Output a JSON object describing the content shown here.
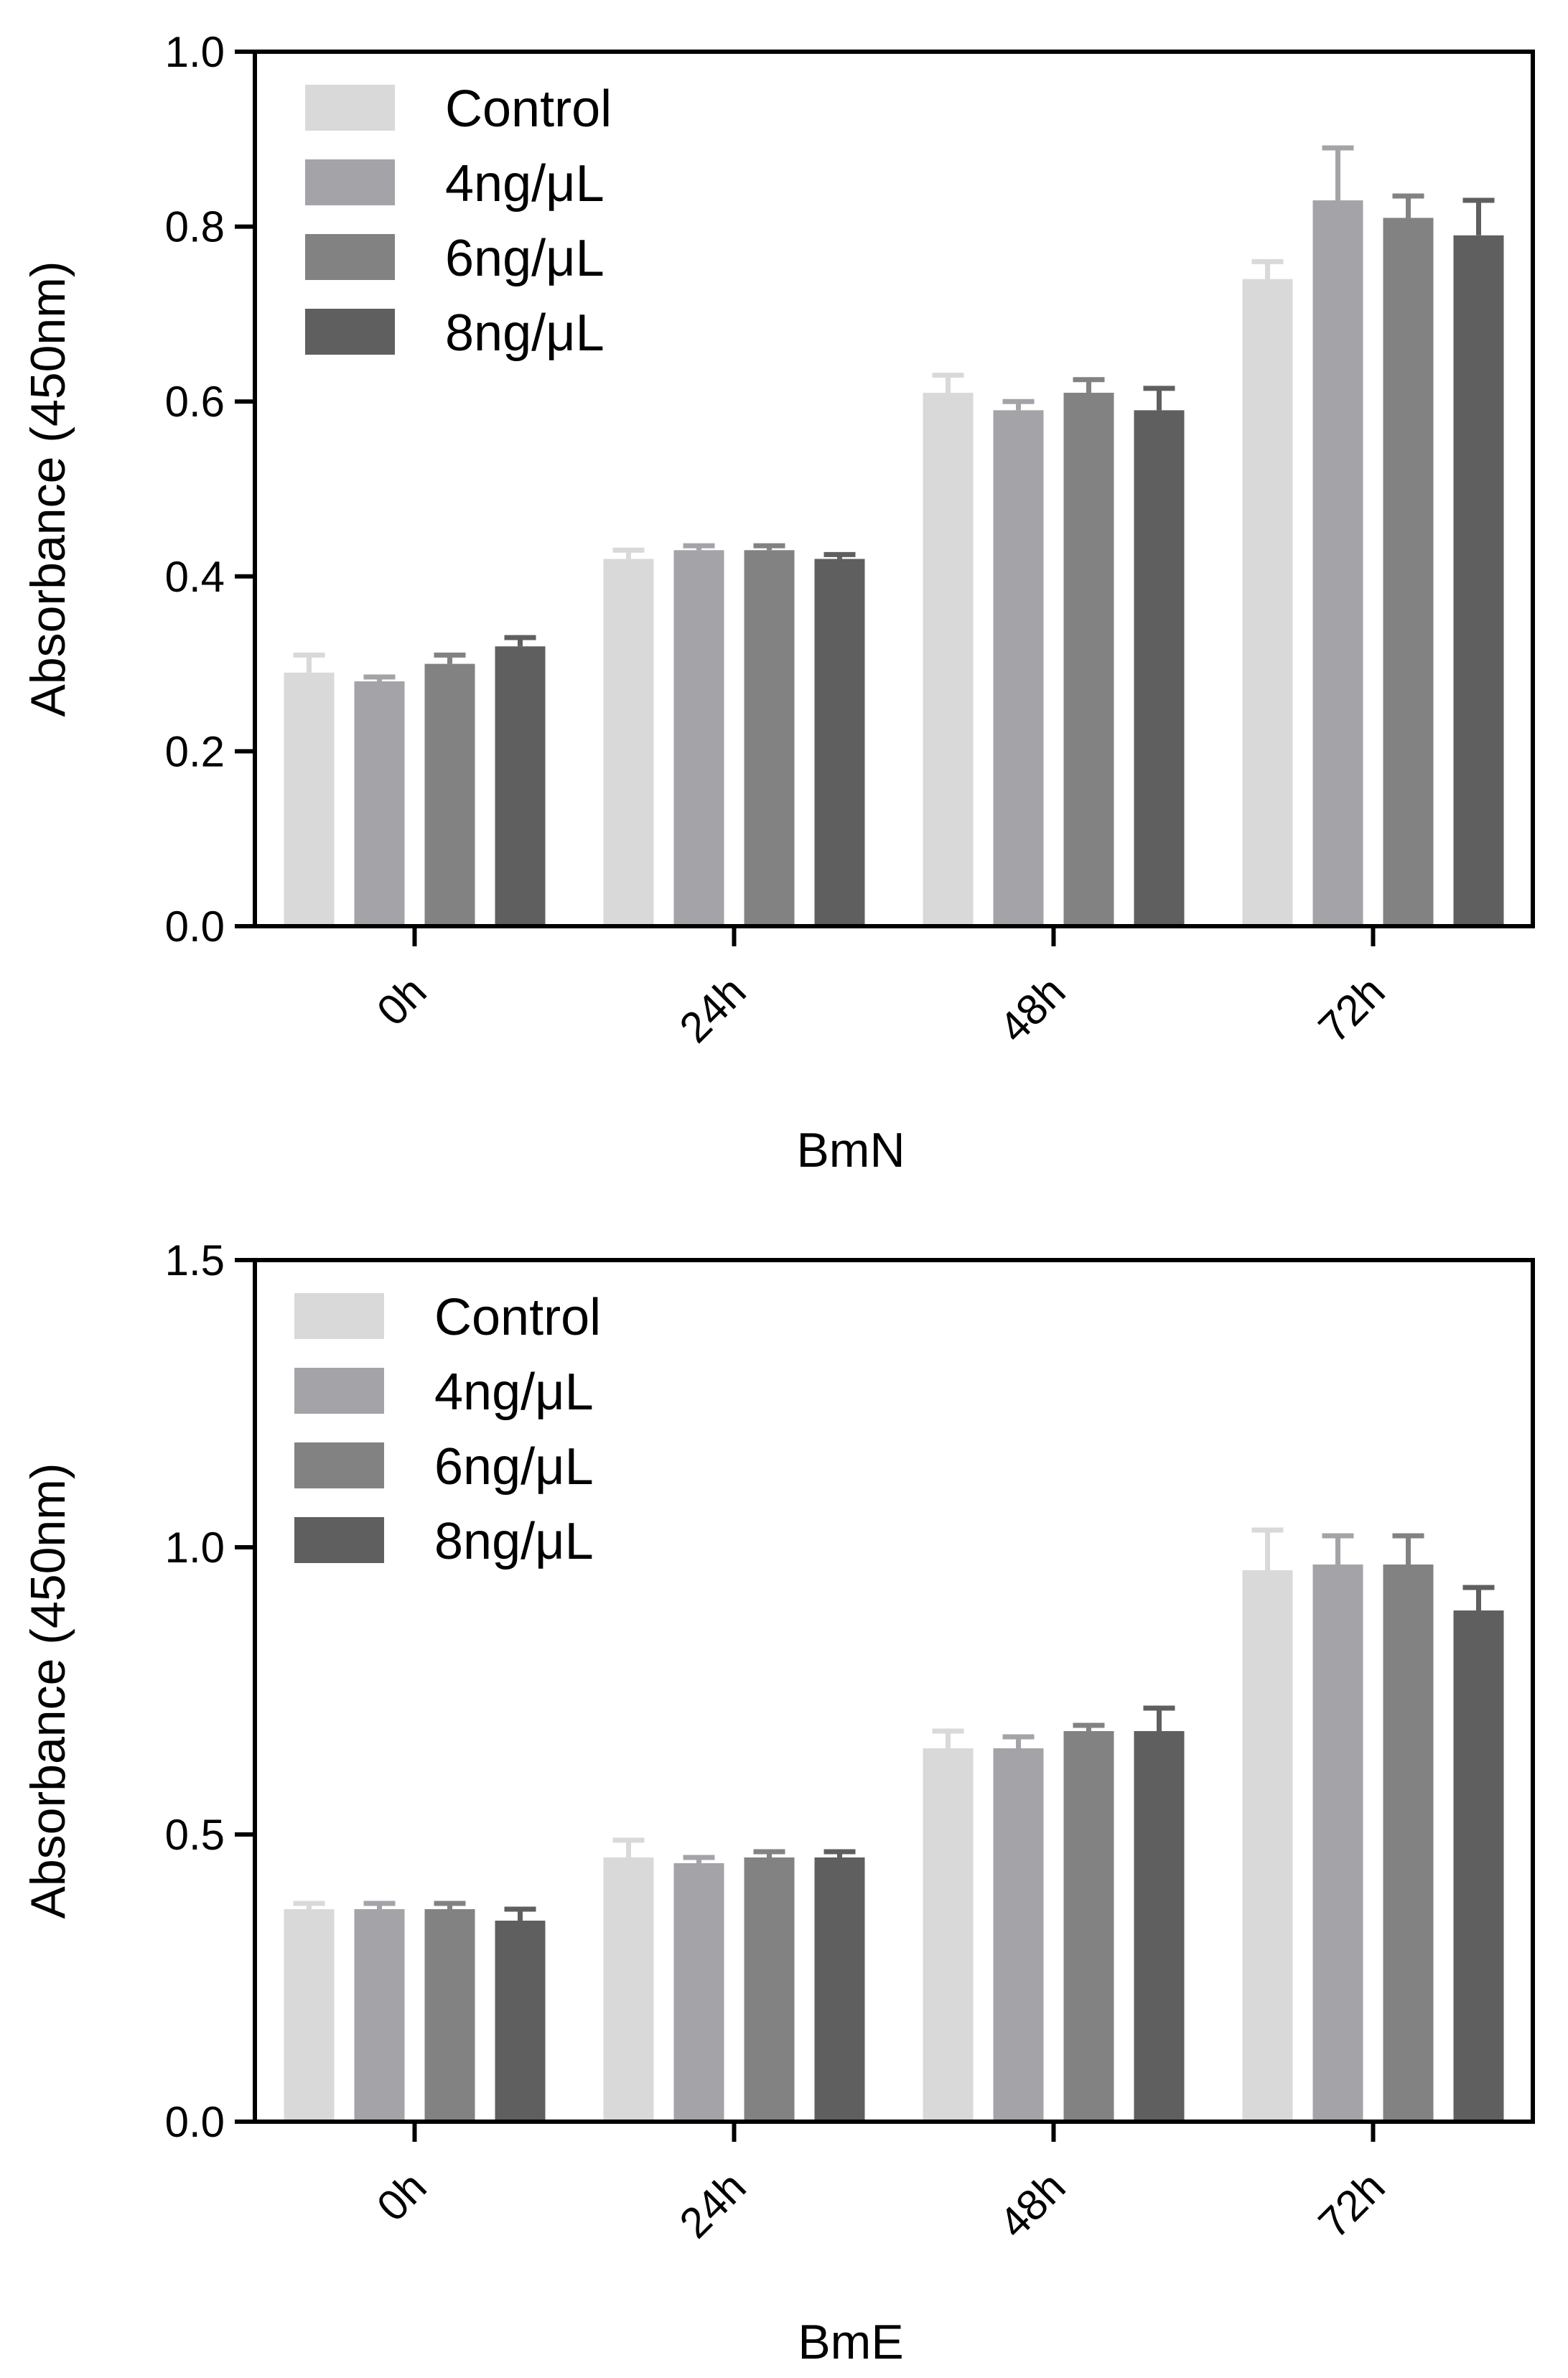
{
  "chart_data": [
    {
      "type": "bar",
      "xlabel": "BmN",
      "ylabel": "Absorbance (450nm)",
      "ylim": [
        0,
        1.0
      ],
      "yticks": [
        0.0,
        0.2,
        0.4,
        0.6,
        0.8,
        1.0
      ],
      "ytick_labels": [
        "0.0",
        "0.2",
        "0.4",
        "0.6",
        "0.8",
        "1.0"
      ],
      "categories": [
        "0h",
        "24h",
        "48h",
        "72h"
      ],
      "legend_position": "top-left",
      "grid": false,
      "series": [
        {
          "name": "Control",
          "color": "#d9d9d9",
          "values": [
            0.29,
            0.42,
            0.61,
            0.74
          ],
          "errors": [
            0.02,
            0.01,
            0.02,
            0.02
          ]
        },
        {
          "name": "4ng/μL",
          "color": "#a3a3a8",
          "values": [
            0.28,
            0.43,
            0.59,
            0.83
          ],
          "errors": [
            0.005,
            0.005,
            0.01,
            0.06
          ]
        },
        {
          "name": "6ng/μL",
          "color": "#828282",
          "values": [
            0.3,
            0.43,
            0.61,
            0.81
          ],
          "errors": [
            0.01,
            0.005,
            0.015,
            0.025
          ]
        },
        {
          "name": "8ng/μL",
          "color": "#5f5f5f",
          "values": [
            0.32,
            0.42,
            0.59,
            0.79
          ],
          "errors": [
            0.01,
            0.005,
            0.025,
            0.04
          ]
        }
      ]
    },
    {
      "type": "bar",
      "xlabel": "BmE",
      "ylabel": "Absorbance (450nm)",
      "ylim": [
        0,
        1.5
      ],
      "yticks": [
        0.0,
        0.5,
        1.0,
        1.5
      ],
      "ytick_labels": [
        "0.0",
        "0.5",
        "1.0",
        "1.5"
      ],
      "categories": [
        "0h",
        "24h",
        "48h",
        "72h"
      ],
      "legend_position": "top-left",
      "grid": false,
      "series": [
        {
          "name": "Control",
          "color": "#d9d9d9",
          "values": [
            0.37,
            0.46,
            0.65,
            0.96
          ],
          "errors": [
            0.01,
            0.03,
            0.03,
            0.07
          ]
        },
        {
          "name": "4ng/μL",
          "color": "#a3a3a8",
          "values": [
            0.37,
            0.45,
            0.65,
            0.97
          ],
          "errors": [
            0.01,
            0.01,
            0.02,
            0.05
          ]
        },
        {
          "name": "6ng/μL",
          "color": "#828282",
          "values": [
            0.37,
            0.46,
            0.68,
            0.97
          ],
          "errors": [
            0.01,
            0.01,
            0.01,
            0.05
          ]
        },
        {
          "name": "8ng/μL",
          "color": "#5f5f5f",
          "values": [
            0.35,
            0.46,
            0.68,
            0.89
          ],
          "errors": [
            0.02,
            0.01,
            0.04,
            0.04
          ]
        }
      ]
    }
  ]
}
